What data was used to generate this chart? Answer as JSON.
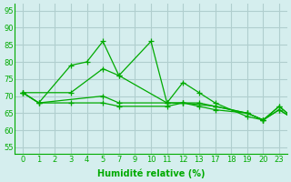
{
  "xlabel": "Humidité relative (%)",
  "background_color": "#d5eeee",
  "grid_color": "#b0cece",
  "line_color": "#00aa00",
  "ylim": [
    53,
    97
  ],
  "yticks": [
    55,
    60,
    65,
    70,
    75,
    80,
    85,
    90,
    95
  ],
  "xtick_labels": [
    "0",
    "1",
    "2",
    "3",
    "4",
    "5",
    "7",
    "9",
    "10",
    "11",
    "12",
    "13",
    "17",
    "18",
    "19",
    "20",
    "23"
  ],
  "series": [
    {
      "xi": [
        0,
        1,
        3,
        4,
        5,
        6,
        8,
        9,
        10,
        11,
        12,
        14,
        15,
        16,
        17,
        19
      ],
      "y": [
        71,
        68,
        79,
        80,
        86,
        76,
        86,
        68,
        74,
        71,
        68,
        64,
        63,
        67,
        63,
        67
      ]
    },
    {
      "xi": [
        0,
        3,
        5,
        6,
        9,
        10,
        12,
        14,
        15,
        16,
        17,
        19
      ],
      "y": [
        71,
        71,
        78,
        76,
        68,
        68,
        67,
        65,
        63,
        66,
        63,
        67
      ]
    },
    {
      "xi": [
        0,
        1,
        5,
        6,
        9,
        10,
        11,
        12,
        14,
        15,
        16,
        17,
        19
      ],
      "y": [
        71,
        68,
        70,
        68,
        68,
        68,
        68,
        67,
        65,
        63,
        67,
        63,
        67
      ]
    },
    {
      "xi": [
        0,
        1,
        3,
        5,
        6,
        9,
        10,
        11,
        12,
        14,
        15,
        16,
        17,
        19
      ],
      "y": [
        71,
        68,
        68,
        68,
        67,
        67,
        68,
        67,
        66,
        65,
        63,
        66,
        63,
        67
      ]
    }
  ]
}
